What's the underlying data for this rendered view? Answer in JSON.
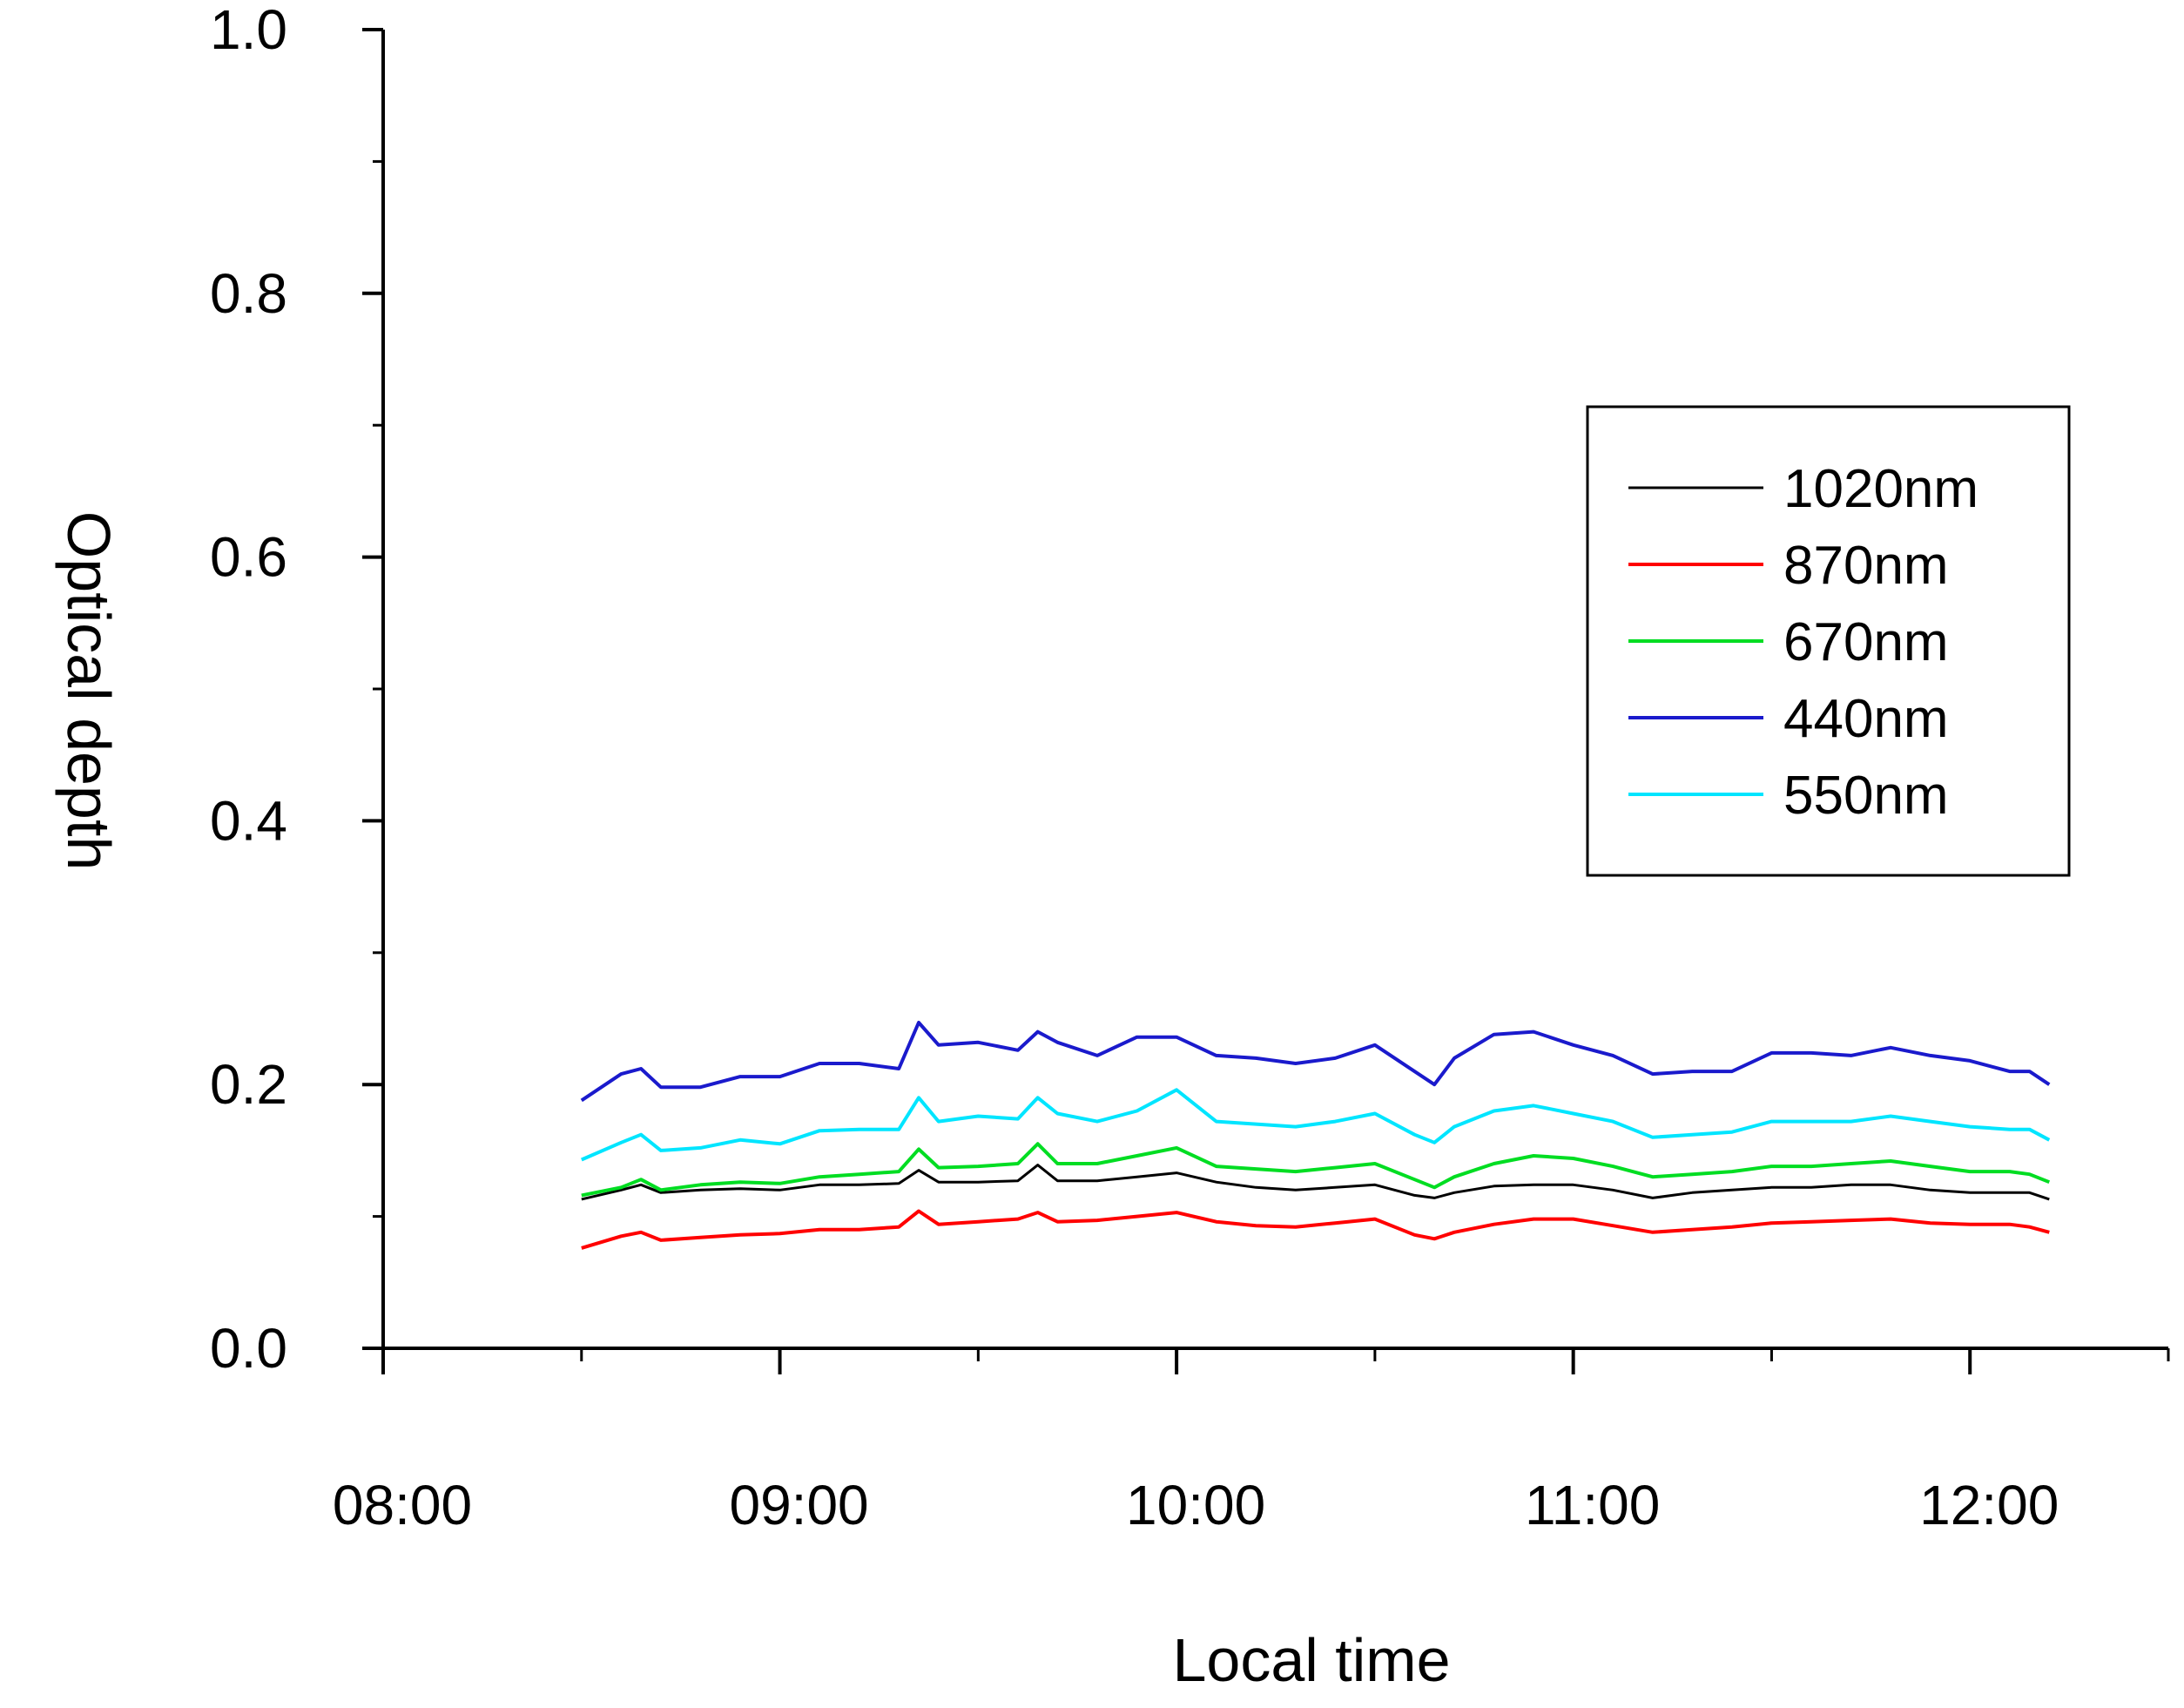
{
  "chart_data": {
    "type": "line",
    "title": "",
    "xlabel": "Local time",
    "ylabel": "Optical depth",
    "xlim": [
      8.0,
      12.5
    ],
    "ylim": [
      0.0,
      1.0
    ],
    "x_ticks": [
      8,
      9,
      10,
      11,
      12
    ],
    "x_tick_labels": [
      "08:00",
      "09:00",
      "10:00",
      "11:00",
      "12:00"
    ],
    "y_ticks": [
      0.0,
      0.2,
      0.4,
      0.6,
      0.8,
      1.0
    ],
    "y_tick_labels": [
      "0.0",
      "0.2",
      "0.4",
      "0.6",
      "0.8",
      "1.0"
    ],
    "grid": false,
    "legend_position": "upper-right",
    "x": [
      8.5,
      8.6,
      8.65,
      8.7,
      8.8,
      8.9,
      9.0,
      9.1,
      9.2,
      9.3,
      9.35,
      9.4,
      9.5,
      9.6,
      9.65,
      9.7,
      9.8,
      9.9,
      10.0,
      10.1,
      10.2,
      10.3,
      10.4,
      10.5,
      10.6,
      10.65,
      10.7,
      10.8,
      10.9,
      11.0,
      11.1,
      11.2,
      11.3,
      11.4,
      11.5,
      11.6,
      11.7,
      11.8,
      11.9,
      12.0,
      12.1,
      12.15,
      12.2
    ],
    "series": [
      {
        "name": "1020nm",
        "color": "#000000",
        "values": [
          0.113,
          0.12,
          0.124,
          0.118,
          0.12,
          0.121,
          0.12,
          0.124,
          0.124,
          0.125,
          0.135,
          0.126,
          0.126,
          0.127,
          0.139,
          0.127,
          0.127,
          0.13,
          0.133,
          0.126,
          0.122,
          0.12,
          0.122,
          0.124,
          0.116,
          0.114,
          0.118,
          0.123,
          0.124,
          0.124,
          0.12,
          0.114,
          0.118,
          0.12,
          0.122,
          0.122,
          0.124,
          0.124,
          0.12,
          0.118,
          0.118,
          0.118,
          0.113
        ]
      },
      {
        "name": "870nm",
        "color": "#ff0000",
        "values": [
          0.076,
          0.085,
          0.088,
          0.082,
          0.084,
          0.086,
          0.087,
          0.09,
          0.09,
          0.092,
          0.104,
          0.094,
          0.096,
          0.098,
          0.103,
          0.096,
          0.097,
          0.1,
          0.103,
          0.096,
          0.093,
          0.092,
          0.095,
          0.098,
          0.086,
          0.083,
          0.088,
          0.094,
          0.098,
          0.098,
          0.093,
          0.088,
          0.09,
          0.092,
          0.095,
          0.096,
          0.097,
          0.098,
          0.095,
          0.094,
          0.094,
          0.092,
          0.088
        ]
      },
      {
        "name": "670nm",
        "color": "#00dd22",
        "values": [
          0.116,
          0.122,
          0.128,
          0.12,
          0.124,
          0.126,
          0.125,
          0.13,
          0.132,
          0.134,
          0.151,
          0.137,
          0.138,
          0.14,
          0.155,
          0.14,
          0.14,
          0.146,
          0.152,
          0.138,
          0.136,
          0.134,
          0.137,
          0.14,
          0.128,
          0.122,
          0.13,
          0.14,
          0.146,
          0.144,
          0.138,
          0.13,
          0.132,
          0.134,
          0.138,
          0.138,
          0.14,
          0.142,
          0.138,
          0.134,
          0.134,
          0.132,
          0.126
        ]
      },
      {
        "name": "440nm",
        "color": "#1a1acc",
        "values": [
          0.188,
          0.208,
          0.212,
          0.198,
          0.198,
          0.206,
          0.206,
          0.216,
          0.216,
          0.212,
          0.247,
          0.23,
          0.232,
          0.226,
          0.24,
          0.232,
          0.222,
          0.236,
          0.236,
          0.222,
          0.22,
          0.216,
          0.22,
          0.23,
          0.21,
          0.2,
          0.22,
          0.238,
          0.24,
          0.23,
          0.222,
          0.208,
          0.21,
          0.21,
          0.224,
          0.224,
          0.222,
          0.228,
          0.222,
          0.218,
          0.21,
          0.21,
          0.2
        ]
      },
      {
        "name": "550nm",
        "color": "#00e5ff",
        "values": [
          0.143,
          0.156,
          0.162,
          0.15,
          0.152,
          0.158,
          0.155,
          0.165,
          0.166,
          0.166,
          0.19,
          0.172,
          0.176,
          0.174,
          0.19,
          0.178,
          0.172,
          0.18,
          0.196,
          0.172,
          0.17,
          0.168,
          0.172,
          0.178,
          0.162,
          0.156,
          0.168,
          0.18,
          0.184,
          0.178,
          0.172,
          0.16,
          0.162,
          0.164,
          0.172,
          0.172,
          0.172,
          0.176,
          0.172,
          0.168,
          0.166,
          0.166,
          0.158
        ]
      }
    ]
  }
}
